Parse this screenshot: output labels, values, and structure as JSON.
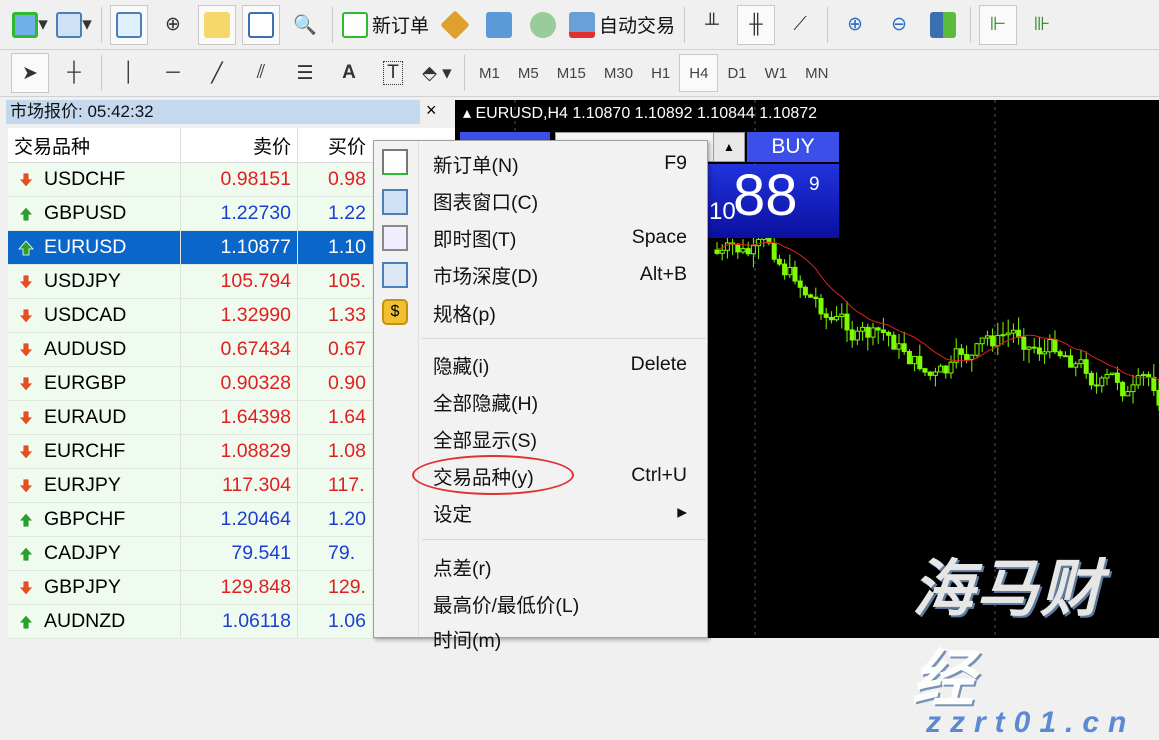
{
  "toolbar1": {
    "new_order": "新订单",
    "auto_trading": "自动交易",
    "icons": [
      "new-chart-icon",
      "profiles-icon",
      "market-watch-icon",
      "crosshair-icon",
      "navigator-icon",
      "terminal-icon",
      "tester-icon",
      "new-order-icon",
      "metaeditor-icon",
      "signals-icon",
      "market-icon",
      "auto-trading-icon",
      "bar-chart-icon",
      "candle-chart-icon",
      "line-chart-icon",
      "zoom-in-icon",
      "zoom-out-icon",
      "tile-windows-icon",
      "chart-shift-icon",
      "autoscroll-icon"
    ]
  },
  "toolbar2": {
    "timeframes": [
      "M1",
      "M5",
      "M15",
      "M30",
      "H1",
      "H4",
      "D1",
      "W1",
      "MN"
    ],
    "active_timeframe": "H4"
  },
  "market_watch": {
    "title": "市场报价: 05:42:32",
    "close": "×",
    "columns": [
      "交易品种",
      "卖价",
      "买价"
    ],
    "rows": [
      {
        "symbol": "USDCHF",
        "bid": "0.98151",
        "ask": "0.98",
        "dir": "down"
      },
      {
        "symbol": "GBPUSD",
        "bid": "1.22730",
        "ask": "1.22",
        "dir": "up"
      },
      {
        "symbol": "EURUSD",
        "bid": "1.10877",
        "ask": "1.10",
        "dir": "up",
        "selected": true
      },
      {
        "symbol": "USDJPY",
        "bid": "105.794",
        "ask": "105.",
        "dir": "down"
      },
      {
        "symbol": "USDCAD",
        "bid": "1.32990",
        "ask": "1.33",
        "dir": "down"
      },
      {
        "symbol": "AUDUSD",
        "bid": "0.67434",
        "ask": "0.67",
        "dir": "down"
      },
      {
        "symbol": "EURGBP",
        "bid": "0.90328",
        "ask": "0.90",
        "dir": "down"
      },
      {
        "symbol": "EURAUD",
        "bid": "1.64398",
        "ask": "1.64",
        "dir": "down"
      },
      {
        "symbol": "EURCHF",
        "bid": "1.08829",
        "ask": "1.08",
        "dir": "down"
      },
      {
        "symbol": "EURJPY",
        "bid": "117.304",
        "ask": "117.",
        "dir": "down"
      },
      {
        "symbol": "GBPCHF",
        "bid": "1.20464",
        "ask": "1.20",
        "dir": "up"
      },
      {
        "symbol": "CADJPY",
        "bid": "79.541",
        "ask": "79.",
        "dir": "up"
      },
      {
        "symbol": "GBPJPY",
        "bid": "129.848",
        "ask": "129.",
        "dir": "down"
      },
      {
        "symbol": "AUDNZD",
        "bid": "1.06118",
        "ask": "1.06",
        "dir": "up"
      }
    ]
  },
  "chart": {
    "title": "EURUSD,H4  1.10870 1.10892 1.10844 1.10872",
    "buy_label": "BUY",
    "buy_price_small": "10",
    "buy_price_big": "88",
    "buy_price_sup": "9",
    "lot_up": "▲"
  },
  "context_menu": {
    "items": [
      {
        "label": "新订单(N)",
        "shortcut": "F9"
      },
      {
        "label": "图表窗口(C)",
        "shortcut": ""
      },
      {
        "label": "即时图(T)",
        "shortcut": "Space"
      },
      {
        "label": "市场深度(D)",
        "shortcut": "Alt+B"
      },
      {
        "label": "规格(p)",
        "shortcut": ""
      },
      {
        "label": "隐藏(i)",
        "shortcut": "Delete"
      },
      {
        "label": "全部隐藏(H)",
        "shortcut": ""
      },
      {
        "label": "全部显示(S)",
        "shortcut": ""
      },
      {
        "label": "交易品种(y)",
        "shortcut": "Ctrl+U",
        "highlighted_by_circle": true
      },
      {
        "label": "设定",
        "shortcut": "▸"
      },
      {
        "label": "点差(r)",
        "shortcut": ""
      },
      {
        "label": "最高价/最低价(L)",
        "shortcut": ""
      },
      {
        "label": "时间(m)",
        "shortcut": ""
      }
    ]
  },
  "colors": {
    "up": "#1a3fd0",
    "down": "#e02020",
    "selected": "#0a66c8",
    "candle": "#7cfc00",
    "ma": "#e02020",
    "circle": "#e03030"
  },
  "watermark": {
    "text": "海马财经",
    "url": "zzrt01.cn"
  }
}
